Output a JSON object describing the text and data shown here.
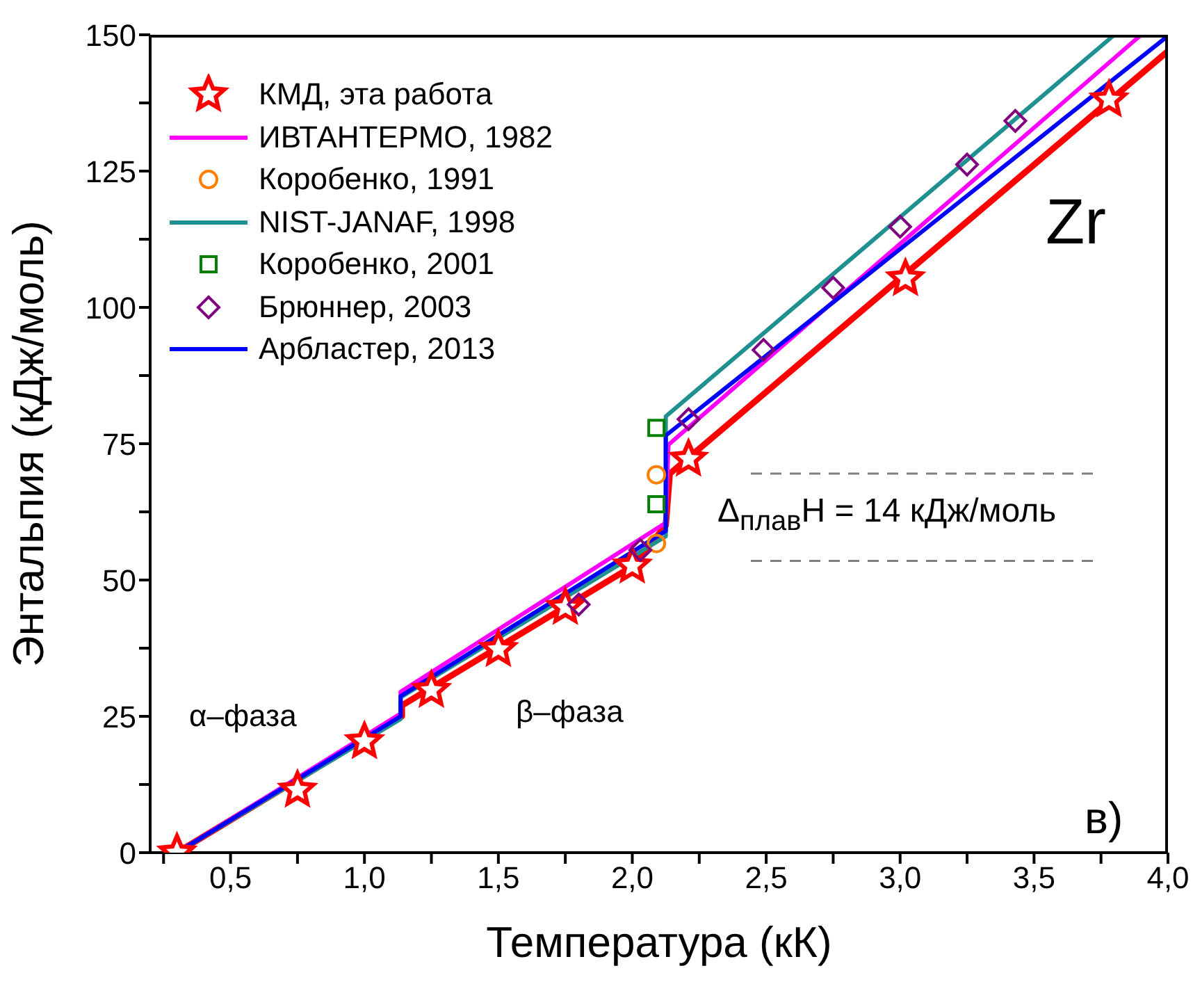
{
  "chart_data": {
    "type": "line",
    "xlabel": "Температура (кК)",
    "ylabel": "Энтальпия (кДж/моль)",
    "xlim": [
      0.2,
      4.0
    ],
    "ylim": [
      0,
      150
    ],
    "xticks": [
      {
        "value": 0.25,
        "label": null
      },
      {
        "value": 0.5,
        "label": "0,5"
      },
      {
        "value": 0.75,
        "label": null
      },
      {
        "value": 1.0,
        "label": "1,0"
      },
      {
        "value": 1.25,
        "label": null
      },
      {
        "value": 1.5,
        "label": "1,5"
      },
      {
        "value": 1.75,
        "label": null
      },
      {
        "value": 2.0,
        "label": "2,0"
      },
      {
        "value": 2.25,
        "label": null
      },
      {
        "value": 2.5,
        "label": "2,5"
      },
      {
        "value": 2.75,
        "label": null
      },
      {
        "value": 3.0,
        "label": "3,0"
      },
      {
        "value": 3.25,
        "label": null
      },
      {
        "value": 3.5,
        "label": "3,5"
      },
      {
        "value": 3.75,
        "label": null
      },
      {
        "value": 4.0,
        "label": "4,0"
      }
    ],
    "yticks": [
      0,
      {
        "value": 12.5,
        "label": null
      },
      25,
      {
        "value": 37.5,
        "label": null
      },
      50,
      {
        "value": 62.5,
        "label": null
      },
      75,
      {
        "value": 87.5,
        "label": null
      },
      100,
      {
        "value": 112.5,
        "label": null
      },
      125,
      {
        "value": 137.5,
        "label": null
      },
      150
    ],
    "grid": false,
    "legend": "top left",
    "line_style": "solid",
    "series": [
      {
        "type": "line",
        "color": "#ff0000",
        "marker": "none",
        "x": [
          0.3,
          1.14,
          1.14,
          2.0,
          2.125,
          2.14,
          4.0
        ],
        "values": [
          0,
          25,
          27,
          52.5,
          60,
          69.5,
          147
        ]
      },
      {
        "type": "scatter",
        "name": "КМД, эта работа",
        "color": "#ff0000",
        "marker": "star",
        "x": [
          0.3,
          0.75,
          1.0,
          1.25,
          1.5,
          1.75,
          2.0,
          2.21,
          3.02,
          3.78
        ],
        "values": [
          0,
          11.5,
          20.4,
          29.8,
          37.3,
          45,
          52.6,
          72.2,
          105.3,
          138.1
        ]
      },
      {
        "type": "line",
        "name": "ИВТАНТЕРМО, 1982",
        "color": "#ff00ff",
        "marker": "none",
        "x": [
          0.3,
          1.135,
          1.135,
          2.125,
          2.135,
          3.9
        ],
        "values": [
          0,
          25.5,
          29.5,
          60.5,
          74.8,
          150
        ]
      },
      {
        "type": "scatter",
        "name": "Коробенко, 1991",
        "color": "#ff8000",
        "marker": "circle",
        "x": [
          2.09,
          2.09
        ],
        "values": [
          56.7,
          69.3
        ]
      },
      {
        "type": "line",
        "name": "NIST-JANAF, 1998",
        "color": "#1f9090",
        "marker": "none",
        "x": [
          0.3,
          1.135,
          1.135,
          2.125,
          2.125,
          3.8
        ],
        "values": [
          0,
          24.5,
          28.5,
          58,
          80,
          150
        ]
      },
      {
        "type": "scatter",
        "name": "Коробенко, 2001",
        "color": "#008000",
        "marker": "square",
        "x": [
          2.09,
          2.09
        ],
        "values": [
          63.9,
          77.9
        ]
      },
      {
        "type": "scatter",
        "name": "Брюннер, 2003",
        "color": "#800080",
        "marker": "diamond",
        "x": [
          1.8,
          2.03,
          2.21,
          2.49,
          2.75,
          3.0,
          3.25,
          3.43
        ],
        "values": [
          45.5,
          55.5,
          79.5,
          92.2,
          103.6,
          114.8,
          126.2,
          134.2
        ]
      },
      {
        "type": "line",
        "name": "Арбластер, 2013",
        "color": "#0000ff",
        "marker": "none",
        "x": [
          0.3,
          1.135,
          1.135,
          2.125,
          2.125,
          4.0
        ],
        "values": [
          0,
          25,
          28.7,
          59,
          76.5,
          149.8
        ]
      }
    ],
    "ref_lines": [
      {
        "axis": "y",
        "value": 69.5,
        "label": null,
        "color": "#808080",
        "line_style": "dashed"
      },
      {
        "axis": "y",
        "value": 53.5,
        "label": null,
        "color": "#808080",
        "line_style": "dashed"
      }
    ],
    "annotations": [
      "Zr",
      "α–фаза",
      "β–фаза",
      "в)",
      "Δ$_{плав}$H = 14 кДж/моль"
    ]
  }
}
